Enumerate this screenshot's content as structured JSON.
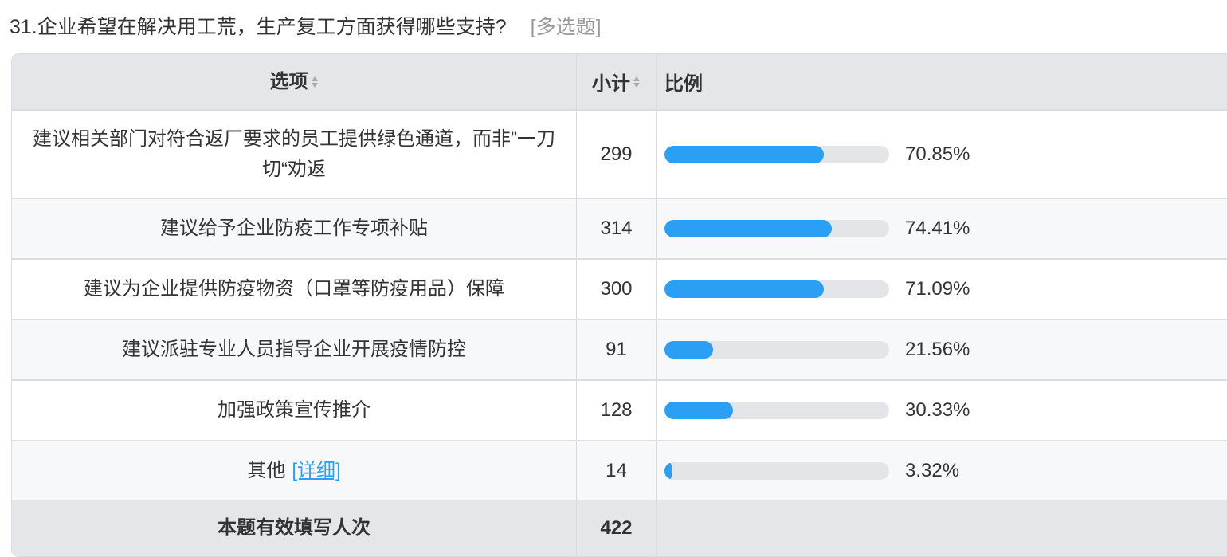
{
  "question": {
    "title": "31.企业希望在解决用工荒，生产复工方面获得哪些支持?",
    "type": "[多选题]"
  },
  "table": {
    "headers": {
      "option": "选项",
      "count": "小计",
      "ratio": "比例"
    },
    "rows": [
      {
        "option": "建议相关部门对符合返厂要求的员工提供绿色通道，而非”一刀切“劝返",
        "count": "299",
        "percent": "70.85%",
        "value": 70.85
      },
      {
        "option": "建议给予企业防疫工作专项补贴",
        "count": "314",
        "percent": "74.41%",
        "value": 74.41
      },
      {
        "option": "建议为企业提供防疫物资（口罩等防疫用品）保障",
        "count": "300",
        "percent": "71.09%",
        "value": 71.09
      },
      {
        "option": "建议派驻专业人员指导企业开展疫情防控",
        "count": "91",
        "percent": "21.56%",
        "value": 21.56
      },
      {
        "option": "加强政策宣传推介",
        "count": "128",
        "percent": "30.33%",
        "value": 30.33
      },
      {
        "option": "其他",
        "link": "[详细]",
        "count": "14",
        "percent": "3.32%",
        "value": 3.32
      }
    ],
    "footer": {
      "label": "本题有效填写人次",
      "count": "422"
    }
  },
  "colors": {
    "bar_fill": "#2a9ff3",
    "bar_track": "#e4e5e8",
    "header_bg": "#e4e6ea",
    "link": "#2a9ff3"
  },
  "icons": {
    "sort": "sort-up-down-icon"
  }
}
